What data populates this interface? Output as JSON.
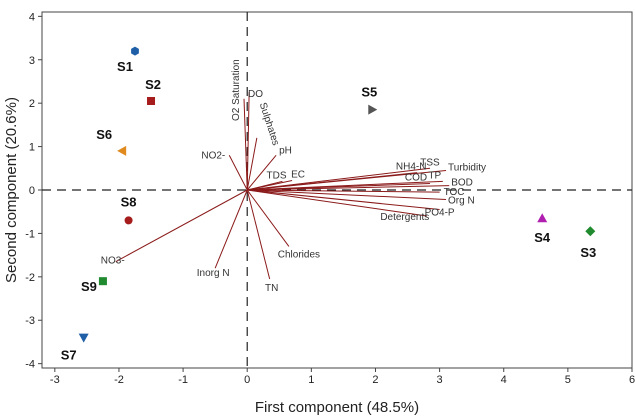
{
  "chart_data": {
    "type": "scatter",
    "subtype": "biplot",
    "xlabel": "First component (48.5%)",
    "ylabel": "Second component (20.6%)",
    "xlim": [
      -3.2,
      6
    ],
    "ylim": [
      -4.1,
      4.1
    ],
    "xticks": [
      -3,
      -2,
      -1,
      0,
      1,
      2,
      3,
      4,
      5,
      6
    ],
    "yticks": [
      -4,
      -3,
      -2,
      -1,
      0,
      1,
      2,
      3,
      4
    ],
    "grid": false,
    "reference_lines": "dashed lines at x=0 and y=0",
    "vector_color": "#8b1a1a",
    "loadings": [
      {
        "name": "O2 Saturation",
        "x": 0.03,
        "y": 2.25
      },
      {
        "name": "DO",
        "x": -0.05,
        "y": 2.1
      },
      {
        "name": "Sulphates",
        "x": 0.15,
        "y": 1.2
      },
      {
        "name": "pH",
        "x": 0.45,
        "y": 0.8
      },
      {
        "name": "NO2-",
        "x": -0.28,
        "y": 0.8
      },
      {
        "name": "TDS",
        "x": 0.55,
        "y": 0.2
      },
      {
        "name": "EC",
        "x": 0.7,
        "y": 0.22
      },
      {
        "name": "NH4-N",
        "x": 2.65,
        "y": 0.4
      },
      {
        "name": "TSS",
        "x": 2.85,
        "y": 0.5
      },
      {
        "name": "Turbidity",
        "x": 3.1,
        "y": 0.45
      },
      {
        "name": "COD",
        "x": 2.85,
        "y": 0.15
      },
      {
        "name": "TP",
        "x": 3.05,
        "y": 0.2
      },
      {
        "name": "BOD",
        "x": 3.15,
        "y": 0.1
      },
      {
        "name": "TOC",
        "x": 3.0,
        "y": -0.05
      },
      {
        "name": "Org N",
        "x": 3.1,
        "y": -0.22
      },
      {
        "name": "PO4-P",
        "x": 3.0,
        "y": -0.45
      },
      {
        "name": "Detergents",
        "x": 2.8,
        "y": -0.6
      },
      {
        "name": "Chlorides",
        "x": 0.65,
        "y": -1.3
      },
      {
        "name": "TN",
        "x": 0.35,
        "y": -2.05
      },
      {
        "name": "Inorg N",
        "x": -0.5,
        "y": -1.8
      },
      {
        "name": "NO3-",
        "x": -2.05,
        "y": -1.65
      }
    ],
    "series": [
      {
        "name": "S1",
        "x": -1.75,
        "y": 3.2,
        "marker": "hexagon",
        "color": "#1f5fa8"
      },
      {
        "name": "S2",
        "x": -1.5,
        "y": 2.05,
        "marker": "square",
        "color": "#a61c1c"
      },
      {
        "name": "S5",
        "x": 1.95,
        "y": 1.85,
        "marker": "triangle-right",
        "color": "#555555"
      },
      {
        "name": "S6",
        "x": -1.95,
        "y": 0.9,
        "marker": "triangle-left",
        "color": "#e08a1e"
      },
      {
        "name": "S8",
        "x": -1.85,
        "y": -0.7,
        "marker": "circle",
        "color": "#a61c1c"
      },
      {
        "name": "S4",
        "x": 4.6,
        "y": -0.65,
        "marker": "triangle-up",
        "color": "#b01fb0"
      },
      {
        "name": "S3",
        "x": 5.35,
        "y": -0.95,
        "marker": "diamond",
        "color": "#1f8a2e"
      },
      {
        "name": "S9",
        "x": -2.25,
        "y": -2.1,
        "marker": "square",
        "color": "#1f8a2e"
      },
      {
        "name": "S7",
        "x": -2.55,
        "y": -3.4,
        "marker": "triangle-down",
        "color": "#1f5fa8"
      }
    ]
  }
}
